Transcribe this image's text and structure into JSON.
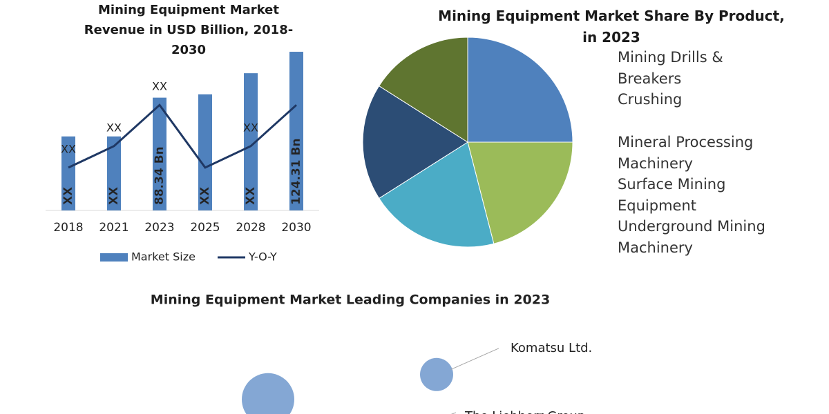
{
  "chart_data": [
    {
      "type": "bar",
      "title": [
        "Mining Equipment Market",
        "Revenue in USD Billion, 2018-",
        "2030"
      ],
      "categories": [
        "2018",
        "2021",
        "2023",
        "2025",
        "2028",
        "2030"
      ],
      "series": [
        {
          "name": "Market Size",
          "color": "#4f81bd",
          "values": [
            58,
            58,
            88.34,
            91,
            107.5,
            124.31
          ],
          "value_labels": [
            "XX",
            "XX",
            "88.34 Bn",
            "XX",
            "XX",
            "124.31 Bn"
          ]
        },
        {
          "name": "Y-O-Y",
          "type": "line",
          "axis": "y2",
          "color": "#1f3864",
          "values": [
            2.4,
            3.6,
            5.9,
            2.4,
            3.6,
            5.9
          ],
          "value_labels": [
            "XX",
            "XX",
            "XX",
            null,
            "XX",
            null
          ]
        }
      ],
      "ylim": [
        0,
        140
      ],
      "y2lim": [
        0,
        10
      ],
      "legend": "bottom"
    },
    {
      "type": "pie",
      "title": [
        "Mining Equipment Market Share By  Product,",
        "in 2023"
      ],
      "categories": [
        "Mining Drills & Breakers",
        "Crushing",
        "Mineral Processing Machinery",
        "Surface Mining Equipment",
        "Underground Mining Machinery"
      ],
      "values": [
        25,
        21,
        20,
        18,
        16
      ],
      "colors": [
        "#4f81bd",
        "#9bbb59",
        "#4bacc6",
        "#2c4d75",
        "#5f7530"
      ],
      "legend": "right"
    },
    {
      "type": "bubble",
      "title": "Mining Equipment Market Leading Companies in 2023",
      "labels": [
        "Komatsu Ltd.",
        null
      ],
      "x": [
        5.4,
        2.35
      ],
      "values": [
        5.4,
        3.4
      ],
      "size": [
        24,
        38
      ],
      "color": "#6f98cc",
      "annotations": [
        "The Liebherr Group"
      ],
      "xlim": [
        0,
        10
      ],
      "ylim": [
        0,
        10
      ]
    }
  ]
}
